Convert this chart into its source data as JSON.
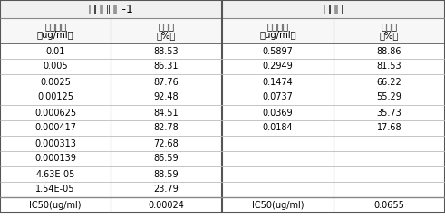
{
  "title_left": "抑癌功能茶-1",
  "title_right": "格列卫",
  "header_col1": "给药浓度",
  "header_col1b": "（ug/ml）",
  "header_col2": "抑制率",
  "header_col2b": "（%）",
  "left_data": [
    [
      "0.01",
      "88.53"
    ],
    [
      "0.005",
      "86.31"
    ],
    [
      "0.0025",
      "87.76"
    ],
    [
      "0.00125",
      "92.48"
    ],
    [
      "0.000625",
      "84.51"
    ],
    [
      "0.000417",
      "82.78"
    ],
    [
      "0.000313",
      "72.68"
    ],
    [
      "0.000139",
      "86.59"
    ],
    [
      "4.63E-05",
      "88.59"
    ],
    [
      "1.54E-05",
      "23.79"
    ],
    [
      "IC50(ug/ml)",
      "0.00024"
    ]
  ],
  "right_data": [
    [
      "0.5897",
      "88.86"
    ],
    [
      "0.2949",
      "81.53"
    ],
    [
      "0.1474",
      "66.22"
    ],
    [
      "0.0737",
      "55.29"
    ],
    [
      "0.0369",
      "35.73"
    ],
    [
      "0.0184",
      "17.68"
    ],
    [
      "",
      ""
    ],
    [
      "",
      ""
    ],
    [
      "",
      ""
    ],
    [
      "",
      ""
    ],
    [
      "IC50(ug/ml)",
      "0.0655"
    ]
  ],
  "bg_color": "#ffffff",
  "text_color": "#000000",
  "font_size": 7.0,
  "title_font_size": 9.0,
  "header_font_size": 7.2
}
